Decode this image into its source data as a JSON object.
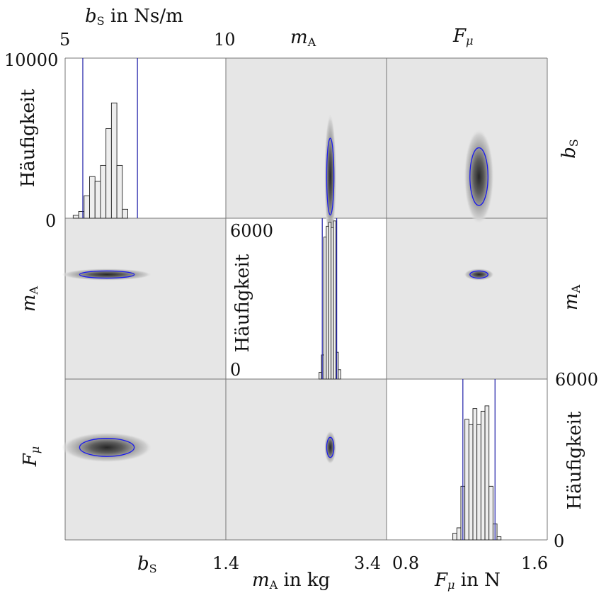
{
  "chart_data": {
    "type": "corner-plot",
    "variables": [
      {
        "key": "bS",
        "symbol": "b",
        "subscript": "S",
        "range": [
          5,
          10
        ]
      },
      {
        "key": "mA",
        "symbol": "m",
        "subscript": "A",
        "range": [
          1.4,
          3.4
        ]
      },
      {
        "key": "Fmu",
        "symbol": "F",
        "subscript": "μ",
        "range": [
          0.8,
          1.6
        ]
      }
    ],
    "axis_titles": {
      "top_left": {
        "prefix": "b",
        "sub": "S",
        "suffix": " in Ns/m"
      },
      "top_mid": {
        "prefix": "m",
        "sub": "A",
        "suffix": ""
      },
      "top_right": {
        "prefix": "F",
        "sub": "μ",
        "suffix": ""
      },
      "bottom_left": {
        "prefix": "b",
        "sub": "S",
        "suffix": ""
      },
      "bottom_mid": {
        "prefix": "m",
        "sub": "A",
        "suffix": " in kg"
      },
      "bottom_right": {
        "prefix": "F",
        "sub": "μ",
        "suffix": " in N"
      },
      "row_mA": {
        "prefix": "m",
        "sub": "A",
        "suffix": ""
      },
      "row_Fmu": {
        "prefix": "F",
        "sub": "μ",
        "suffix": ""
      },
      "right_bS": {
        "prefix": "b",
        "sub": "S",
        "suffix": ""
      },
      "right_mA": {
        "prefix": "m",
        "sub": "A",
        "suffix": ""
      }
    },
    "tick_labels": {
      "bS_min": "5",
      "bS_max": "10",
      "mA_min": "1.4",
      "mA_max": "3.4",
      "Fmu_min": "0.8",
      "Fmu_max": "1.6",
      "h1_max": "10000",
      "h1_min": "0",
      "h2_max": "6000",
      "h2_min": "0",
      "h3_max": "6000",
      "h3_min": "0"
    },
    "ylabel_hist": "Häufigkeit",
    "histograms": [
      {
        "var": "bS",
        "ylim": [
          0,
          10000
        ],
        "bin_edges": [
          5.25,
          5.42,
          5.59,
          5.76,
          5.93,
          6.1,
          6.27,
          6.44,
          6.61,
          6.78,
          6.95
        ],
        "counts": [
          180,
          420,
          1400,
          2600,
          2300,
          3300,
          5600,
          7200,
          3300,
          560
        ],
        "ci": [
          5.55,
          7.25
        ]
      },
      {
        "var": "mA",
        "ylim": [
          0,
          6000
        ],
        "bin_edges": [
          2.56,
          2.59,
          2.62,
          2.65,
          2.68,
          2.71,
          2.74,
          2.77,
          2.8,
          2.83
        ],
        "counts": [
          250,
          900,
          5300,
          5700,
          5850,
          5650,
          5900,
          1000,
          350
        ],
        "ci": [
          2.6,
          2.78
        ]
      },
      {
        "var": "Fmu",
        "ylim": [
          0,
          6000
        ],
        "bin_edges": [
          1.13,
          1.15,
          1.17,
          1.19,
          1.21,
          1.23,
          1.25,
          1.27,
          1.29,
          1.31,
          1.33,
          1.35,
          1.37
        ],
        "counts": [
          250,
          450,
          2000,
          4500,
          4300,
          4900,
          4300,
          4800,
          5000,
          2000,
          600,
          120
        ],
        "ci": [
          1.18,
          1.34
        ]
      }
    ],
    "joint_densities": [
      {
        "x": "mA",
        "y": "bS",
        "cx": 2.7,
        "cy": 6.3,
        "sx": 0.045,
        "sy": 1.2
      },
      {
        "x": "Fmu",
        "y": "bS",
        "cx": 1.26,
        "cy": 6.3,
        "sx": 0.045,
        "sy": 0.9
      },
      {
        "x": "bS",
        "y": "mA",
        "cx": 6.3,
        "cy": 2.7,
        "sx": 0.85,
        "sy": 0.045
      },
      {
        "x": "Fmu",
        "y": "mA",
        "cx": 1.26,
        "cy": 2.7,
        "sx": 0.045,
        "sy": 0.045
      },
      {
        "x": "bS",
        "y": "Fmu",
        "cx": 6.3,
        "cy": 1.26,
        "sx": 0.85,
        "sy": 0.045
      },
      {
        "x": "mA",
        "y": "Fmu",
        "cx": 2.7,
        "cy": 1.26,
        "sx": 0.045,
        "sy": 0.05
      }
    ],
    "colors": {
      "density_max": "#2e2e2e",
      "density_min": "#e6e6e6",
      "contour": "#1a1aee",
      "ci_line": "#1f1fa8",
      "bar_fill": "#eeeeee",
      "bar_edge": "#222222",
      "grid": "#777777"
    }
  }
}
